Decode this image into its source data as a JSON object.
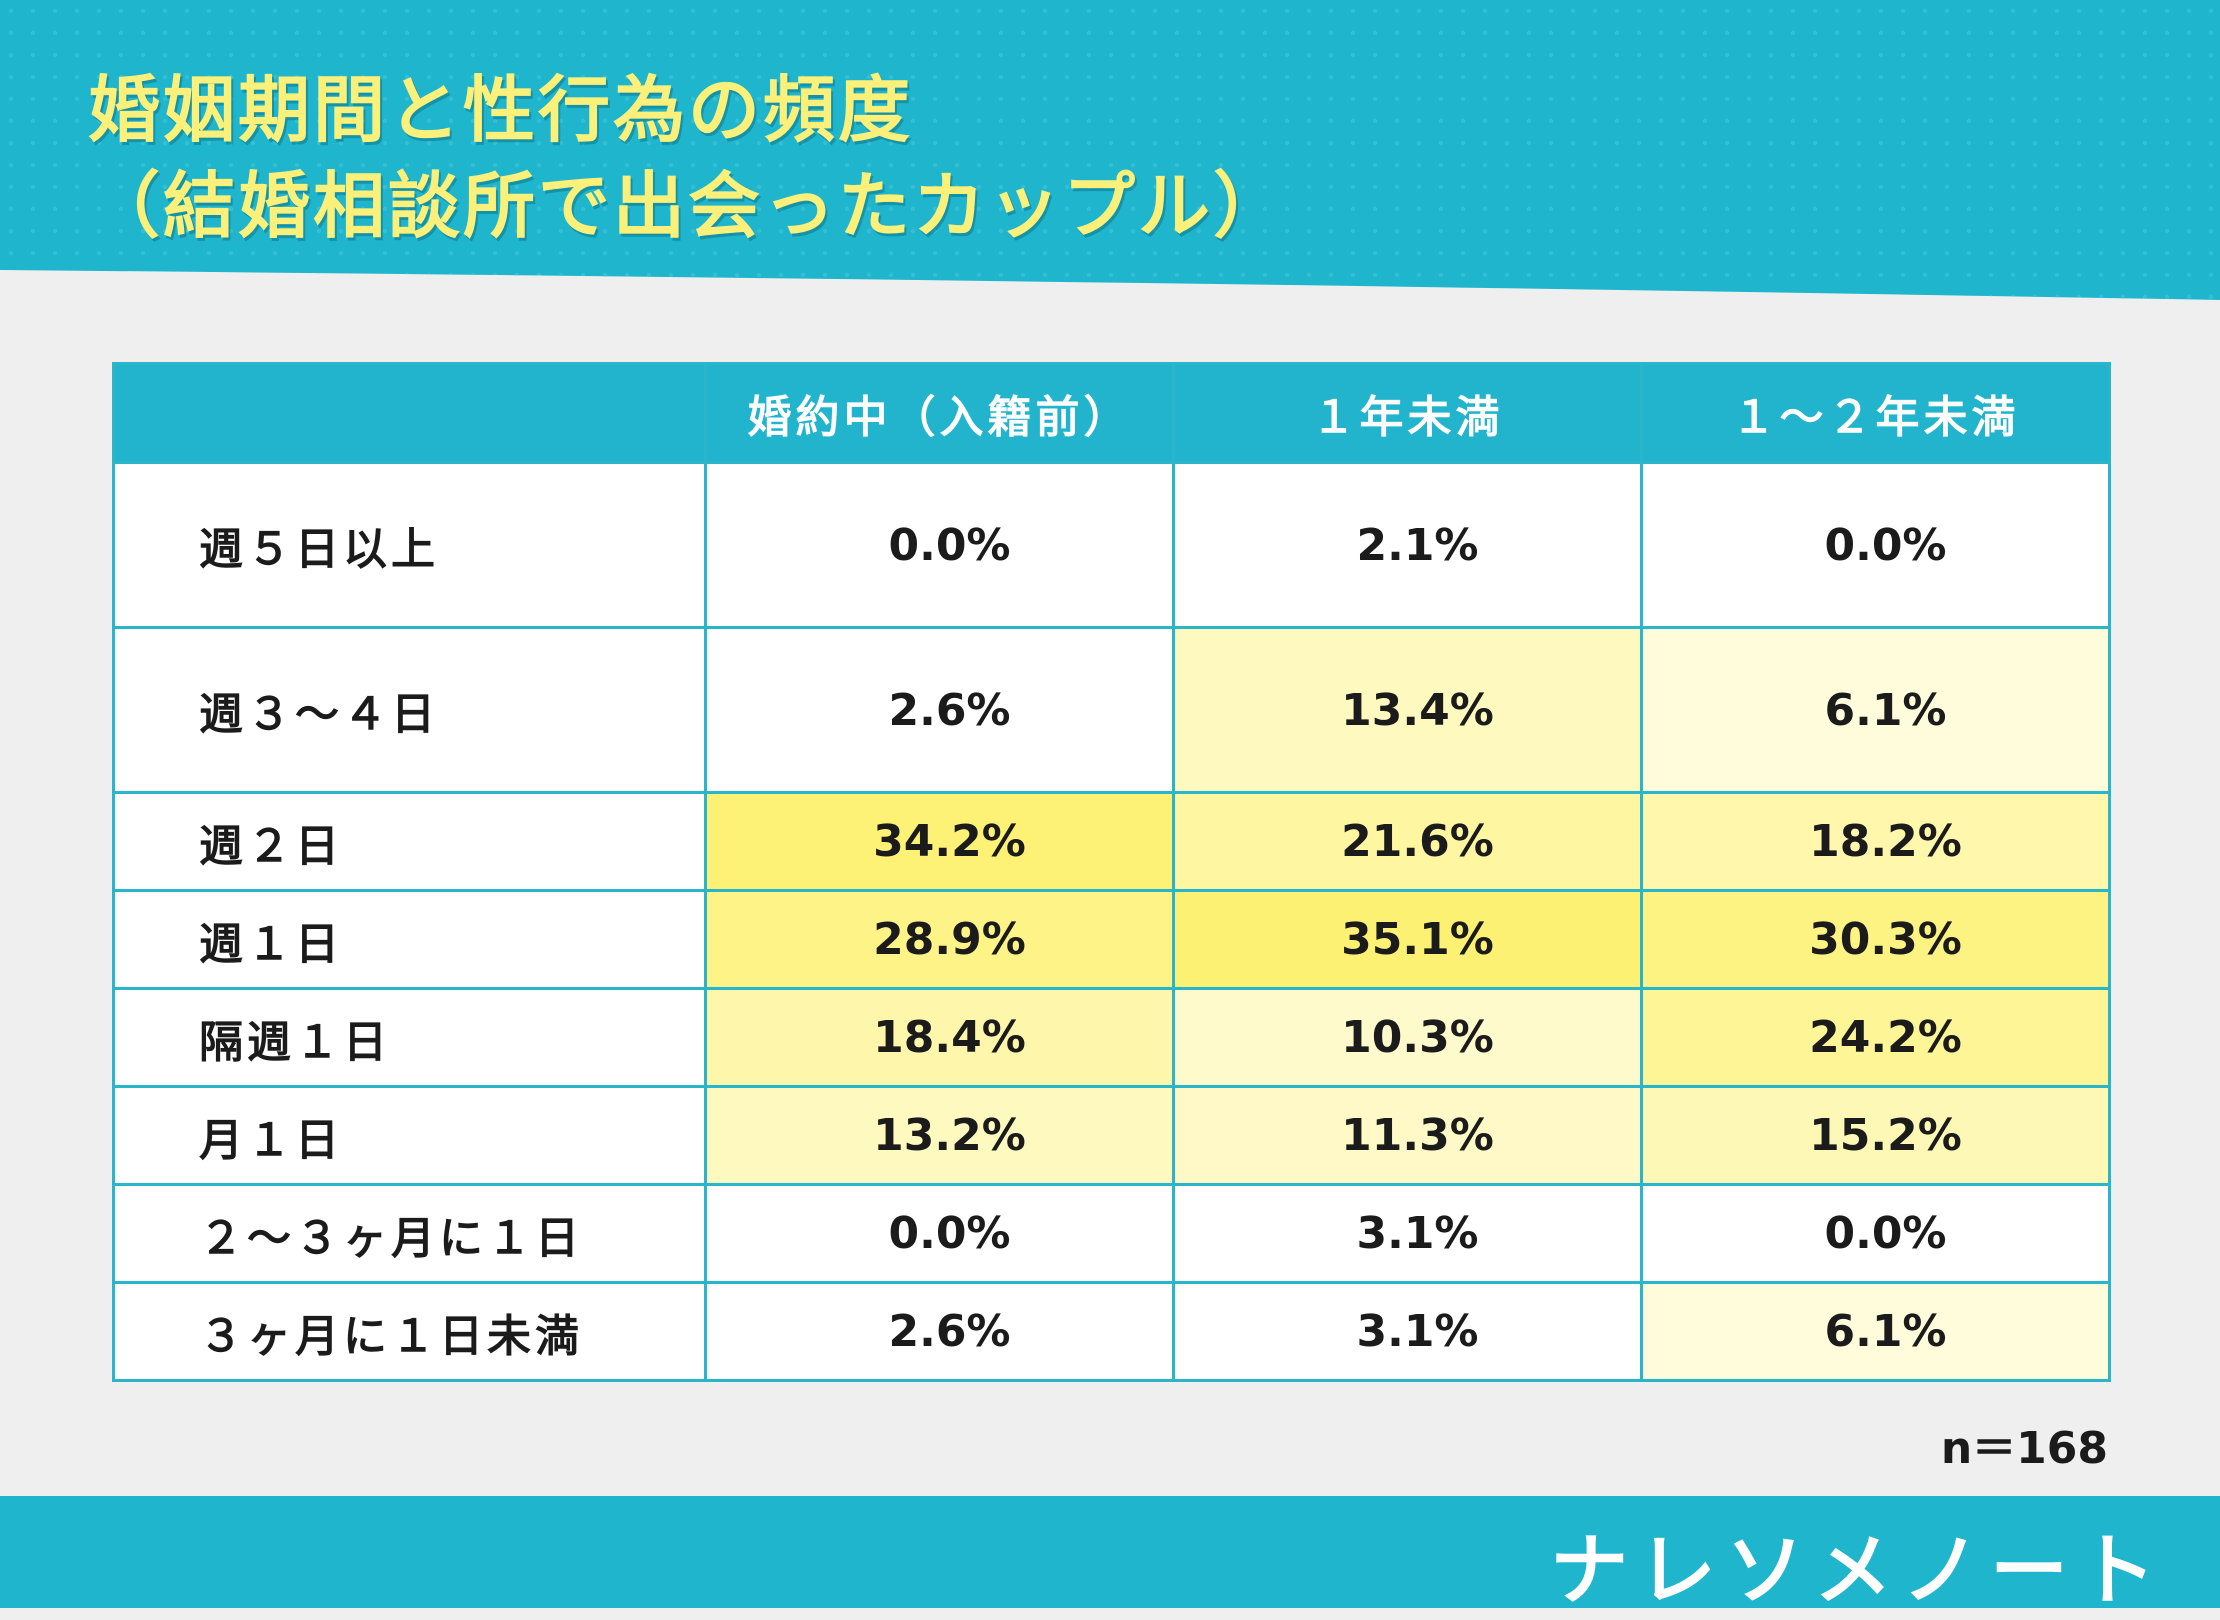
{
  "title": {
    "line1": "婚姻期間と性行為の頻度",
    "line2": "（結婚相談所で出会ったカップル）"
  },
  "colors": {
    "header_bg": "#1fb5cd",
    "title_text": "#fbf07a",
    "heat_max": "#fdf173",
    "heat_min": "#ffffff"
  },
  "chart_data": {
    "type": "table",
    "columns": [
      "婚約中（入籍前）",
      "１年未満",
      "１～２年未満"
    ],
    "rows": [
      {
        "label": "週５日以上",
        "values": [
          "0.0%",
          "2.1%",
          "0.0%"
        ]
      },
      {
        "label": "週３～４日",
        "values": [
          "2.6%",
          "13.4%",
          "6.1%"
        ]
      },
      {
        "label": "週２日",
        "values": [
          "34.2%",
          "21.6%",
          "18.2%"
        ]
      },
      {
        "label": "週１日",
        "values": [
          "28.9%",
          "35.1%",
          "30.3%"
        ]
      },
      {
        "label": "隔週１日",
        "values": [
          "18.4%",
          "10.3%",
          "24.2%"
        ]
      },
      {
        "label": "月１日",
        "values": [
          "13.2%",
          "11.3%",
          "15.2%"
        ]
      },
      {
        "label": "２～３ヶ月に１日",
        "values": [
          "0.0%",
          "3.1%",
          "0.0%"
        ]
      },
      {
        "label": "３ヶ月に１日未満",
        "values": [
          "2.6%",
          "3.1%",
          "6.1%"
        ]
      }
    ]
  },
  "note": "n＝168",
  "brand": "ナレソメノート"
}
